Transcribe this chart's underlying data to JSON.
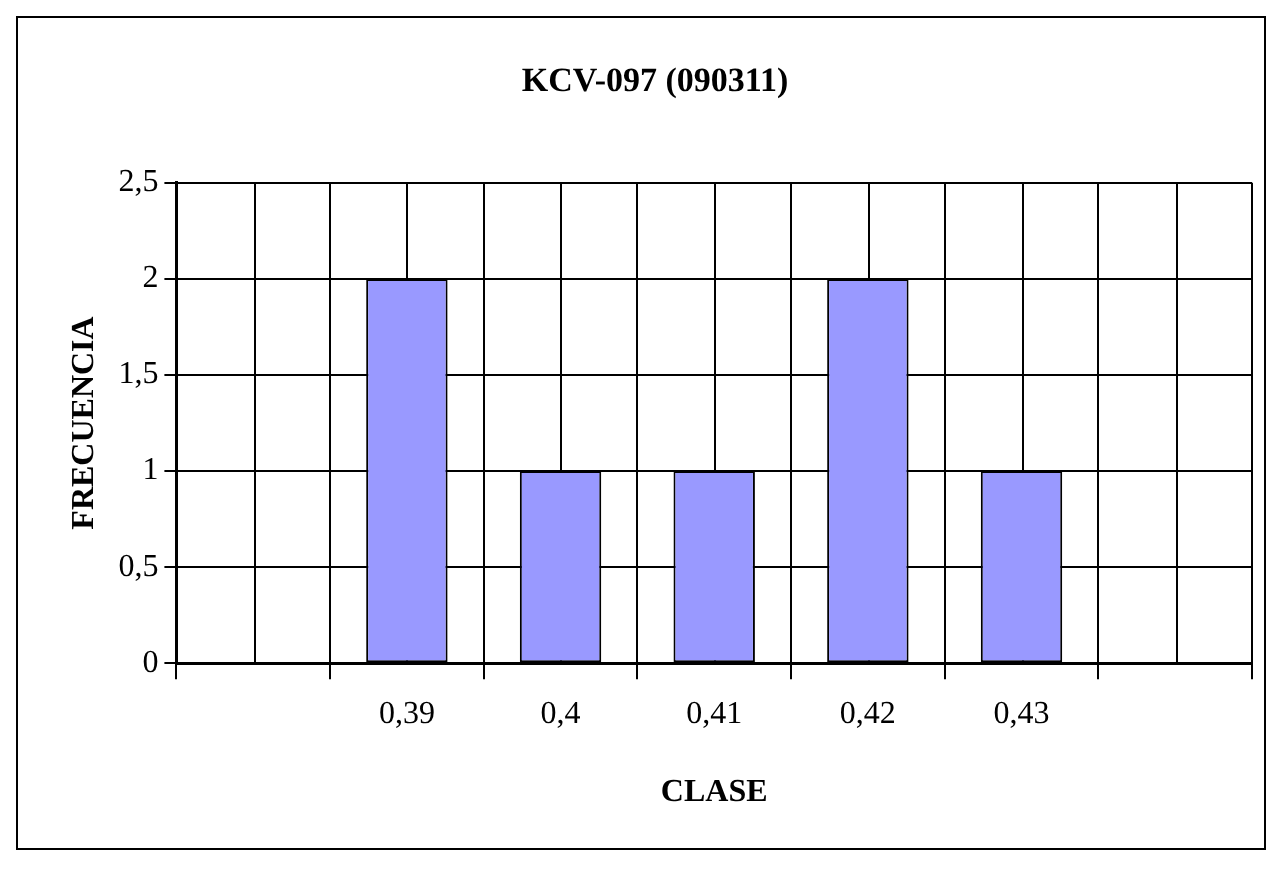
{
  "chart_data": {
    "type": "bar",
    "title": "KCV-097 (090311)",
    "xlabel": "CLASE",
    "ylabel": "FRECUENCIA",
    "categories": [
      null,
      "0,39",
      "0,4",
      "0,41",
      "0,42",
      "0,43",
      null
    ],
    "values": [
      null,
      2,
      1,
      1,
      2,
      1,
      null
    ],
    "color": "#9999ff",
    "ylim": [
      0,
      2.5
    ],
    "yticks": [
      0,
      {
        "value": 0.5,
        "label": "0,5"
      },
      1,
      {
        "value": 1.5,
        "label": "1,5"
      },
      2,
      {
        "value": 2.5,
        "label": "2,5"
      }
    ],
    "grid": true,
    "legend": false
  }
}
